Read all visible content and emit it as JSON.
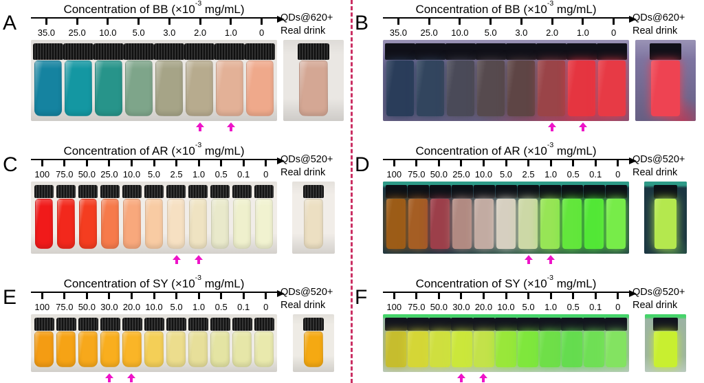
{
  "figure": {
    "divider_color": "#cb2f63",
    "pointer_color": "#ee14c8",
    "panels": [
      {
        "letter": "A",
        "title_prefix": "Concentration of BB (×10",
        "title_exponent": "-3",
        "title_suffix": " mg/mL)",
        "ticks": [
          "35.0",
          "25.0",
          "10.0",
          "5.0",
          "3.0",
          "2.0",
          "1.0",
          "0"
        ],
        "right_label_line1": "QDs@620+",
        "right_label_line2": "Real drink",
        "mode": "daylight",
        "photo_bg": "#eae7e3",
        "cap_color": "#1e1e1e",
        "vial_colors": [
          "#1583a0",
          "#1497a2",
          "#27948a",
          "#7ea58a",
          "#a6a487",
          "#b7ab8e",
          "#e3b197",
          "#efa98b"
        ],
        "real_drink_color": "#d4a794",
        "pointer_indices": [
          5,
          6
        ]
      },
      {
        "letter": "B",
        "title_prefix": "Concentration of BB (×10",
        "title_exponent": "-3",
        "title_suffix": " mg/mL)",
        "ticks": [
          "35.0",
          "25.0",
          "10.0",
          "5.0",
          "3.0",
          "2.0",
          "1.0",
          "0"
        ],
        "right_label_line1": "QDs@620+",
        "right_label_line2": "Real drink",
        "mode": "uv",
        "photo_bg": "#7d74a0",
        "cap_color": "#101018",
        "vial_colors": [
          "#2a3d5a",
          "#32455e",
          "#4a4a58",
          "#564a4e",
          "#5e4545",
          "#9a4448",
          "#e53540",
          "#e73a45"
        ],
        "real_drink_color": "#ee4352",
        "pointer_indices": [
          5,
          6
        ]
      },
      {
        "letter": "C",
        "title_prefix": "Concentration of AR (×10",
        "title_exponent": "-3",
        "title_suffix": " mg/mL)",
        "ticks": [
          "100",
          "75.0",
          "50.0",
          "25.0",
          "10.0",
          "5.0",
          "2.5",
          "1.0",
          "0.5",
          "0.1",
          "0"
        ],
        "right_label_line1": "QDs@520+",
        "right_label_line2": "Real drink",
        "mode": "daylight",
        "photo_bg": "#f1ede8",
        "cap_color": "#242424",
        "vial_colors": [
          "#f01a1a",
          "#f2281c",
          "#f43d20",
          "#f67a4b",
          "#f8a87c",
          "#f8cba3",
          "#f6e0c2",
          "#efe3c2",
          "#e9e9cb",
          "#eff0cd",
          "#f1f2d0"
        ],
        "real_drink_color": "#ecdfc2",
        "pointer_indices": [
          6,
          7
        ]
      },
      {
        "letter": "D",
        "title_prefix": "Concentration of AR (×10",
        "title_exponent": "-3",
        "title_suffix": " mg/mL)",
        "ticks": [
          "100",
          "75.0",
          "50.0",
          "25.0",
          "10.0",
          "5.0",
          "2.5",
          "1.0",
          "0.5",
          "0.1",
          "0"
        ],
        "right_label_line1": "QDs@520+",
        "right_label_line2": "Real drink",
        "mode": "uv",
        "photo_bg": "#1b3642",
        "cap_color": "#0b1016",
        "vial_colors": [
          "#9c5c17",
          "#a55e24",
          "#9c3f4a",
          "#b18a82",
          "#c2aba2",
          "#d6cfc0",
          "#ccd8a6",
          "#97e556",
          "#63e63c",
          "#52e736",
          "#77ec49"
        ],
        "real_drink_color": "#b4e84e",
        "pointer_indices": [
          6,
          7
        ]
      },
      {
        "letter": "E",
        "title_prefix": "Concentration of SY (×10",
        "title_exponent": "-3",
        "title_suffix": " mg/mL)",
        "ticks": [
          "100",
          "75.0",
          "50.0",
          "30.0",
          "20.0",
          "10.0",
          "5.0",
          "1.0",
          "0.5",
          "0.1",
          "0"
        ],
        "right_label_line1": "QDs@520+",
        "right_label_line2": "Real drink",
        "mode": "daylight",
        "photo_bg": "#eeebe5",
        "cap_color": "#232323",
        "vial_colors": [
          "#f49c13",
          "#f6a315",
          "#f7a81b",
          "#f9ae1e",
          "#fab527",
          "#f4cf57",
          "#ecdd8d",
          "#e7df9a",
          "#e4e4a3",
          "#e6e6a8",
          "#e9e9ad"
        ],
        "real_drink_color": "#f5a912",
        "pointer_indices": [
          3,
          4
        ]
      },
      {
        "letter": "F",
        "title_prefix": "Concentration of SY (×10",
        "title_exponent": "-3",
        "title_suffix": " mg/mL)",
        "ticks": [
          "100",
          "75.0",
          "50.0",
          "30.0",
          "20.0",
          "10.0",
          "5.0",
          "1.0",
          "0.5",
          "0.1",
          "0"
        ],
        "right_label_line1": "QDs@520+",
        "right_label_line2": "Real drink",
        "mode": "uv",
        "photo_bg": "#9cb3a3",
        "cap_color": "#12141e",
        "vial_colors": [
          "#c6bd2e",
          "#d5d636",
          "#cfdf3f",
          "#cbe73b",
          "#c3e24a",
          "#99e73a",
          "#7fe73c",
          "#6fdf48",
          "#65dc4f",
          "#6fdf55",
          "#83e361"
        ],
        "real_drink_color": "#c8ef30",
        "pointer_indices": [
          3,
          4
        ]
      }
    ]
  }
}
